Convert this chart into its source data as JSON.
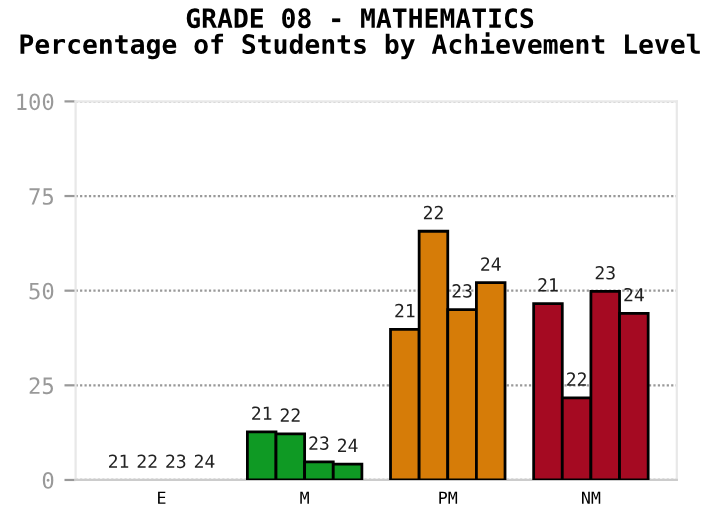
{
  "chart_data": {
    "type": "bar",
    "title": "GRADE 08 - MATHEMATICS\nPercentage of Students by Achievement Level",
    "categories": [
      "E",
      "M",
      "PM",
      "NM"
    ],
    "series": [
      {
        "name": "21",
        "colors": [
          null,
          "#0f9a24",
          "#d67c08",
          "#a50a22"
        ],
        "values": [
          0,
          12.7,
          39.8,
          46.6
        ]
      },
      {
        "name": "22",
        "colors": [
          null,
          "#0f9a24",
          "#d67c08",
          "#a50a22"
        ],
        "values": [
          0,
          12.2,
          65.7,
          21.7
        ]
      },
      {
        "name": "23",
        "colors": [
          null,
          "#0f9a24",
          "#d67c08",
          "#a50a22"
        ],
        "values": [
          0,
          4.8,
          45,
          49.8
        ]
      },
      {
        "name": "24",
        "colors": [
          null,
          "#0f9a24",
          "#d67c08",
          "#a50a22"
        ],
        "values": [
          0,
          4.2,
          52.1,
          44
        ]
      }
    ],
    "ylim": [
      0,
      100
    ],
    "yticks": [
      0,
      25,
      50,
      75,
      100
    ],
    "grid": "y",
    "legend": false
  }
}
